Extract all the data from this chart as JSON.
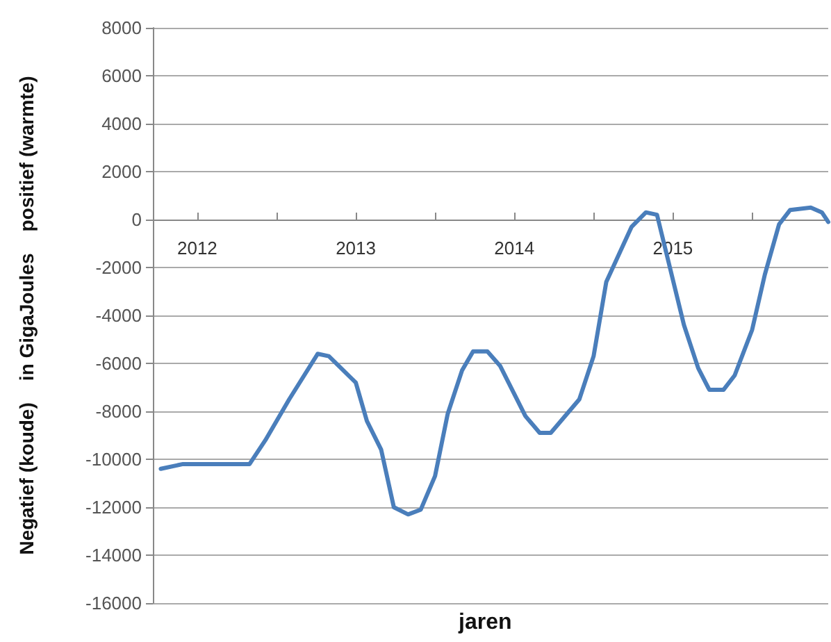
{
  "chart_data": {
    "type": "line",
    "xlabel": "jaren",
    "ylabel": "Negatief (koude)    in GigaJoules    positief (warmte)",
    "xlim": [
      2011.72,
      2015.98
    ],
    "xticks": [
      {
        "value": 2012,
        "label": "2012"
      },
      {
        "value": 2012.5,
        "label": null
      },
      {
        "value": 2013,
        "label": "2013"
      },
      {
        "value": 2013.5,
        "label": null
      },
      {
        "value": 2014,
        "label": "2014"
      },
      {
        "value": 2014.5,
        "label": null
      },
      {
        "value": 2015,
        "label": "2015"
      },
      {
        "value": 2015.5,
        "label": null
      }
    ],
    "ylim": [
      -16000,
      8000
    ],
    "yticks": [
      -16000,
      -14000,
      -12000,
      -10000,
      -8000,
      -6000,
      -4000,
      -2000,
      0,
      2000,
      4000,
      6000,
      8000
    ],
    "grid": "y",
    "marker": "none",
    "series": [
      {
        "color": "#4a7ebb",
        "x": [
          2011.77,
          2011.91,
          2012.33,
          2012.43,
          2012.58,
          2012.76,
          2012.83,
          2013.0,
          2013.07,
          2013.16,
          2013.24,
          2013.33,
          2013.41,
          2013.5,
          2013.58,
          2013.67,
          2013.74,
          2013.83,
          2013.91,
          2014.07,
          2014.16,
          2014.23,
          2014.41,
          2014.5,
          2014.58,
          2014.74,
          2014.83,
          2014.9,
          2015.07,
          2015.16,
          2015.23,
          2015.32,
          2015.39,
          2015.5,
          2015.58,
          2015.67,
          2015.74,
          2015.87,
          2015.94,
          2015.98
        ],
        "values": [
          -10400,
          -10200,
          -10200,
          -9200,
          -7500,
          -5600,
          -5700,
          -6800,
          -8400,
          -9600,
          -12000,
          -12300,
          -12100,
          -10700,
          -8100,
          -6300,
          -5500,
          -5500,
          -6100,
          -8200,
          -8900,
          -8900,
          -7500,
          -5700,
          -2600,
          -300,
          300,
          200,
          -4400,
          -6200,
          -7100,
          -7100,
          -6500,
          -4600,
          -2300,
          -200,
          400,
          500,
          300,
          -100
        ]
      }
    ]
  }
}
